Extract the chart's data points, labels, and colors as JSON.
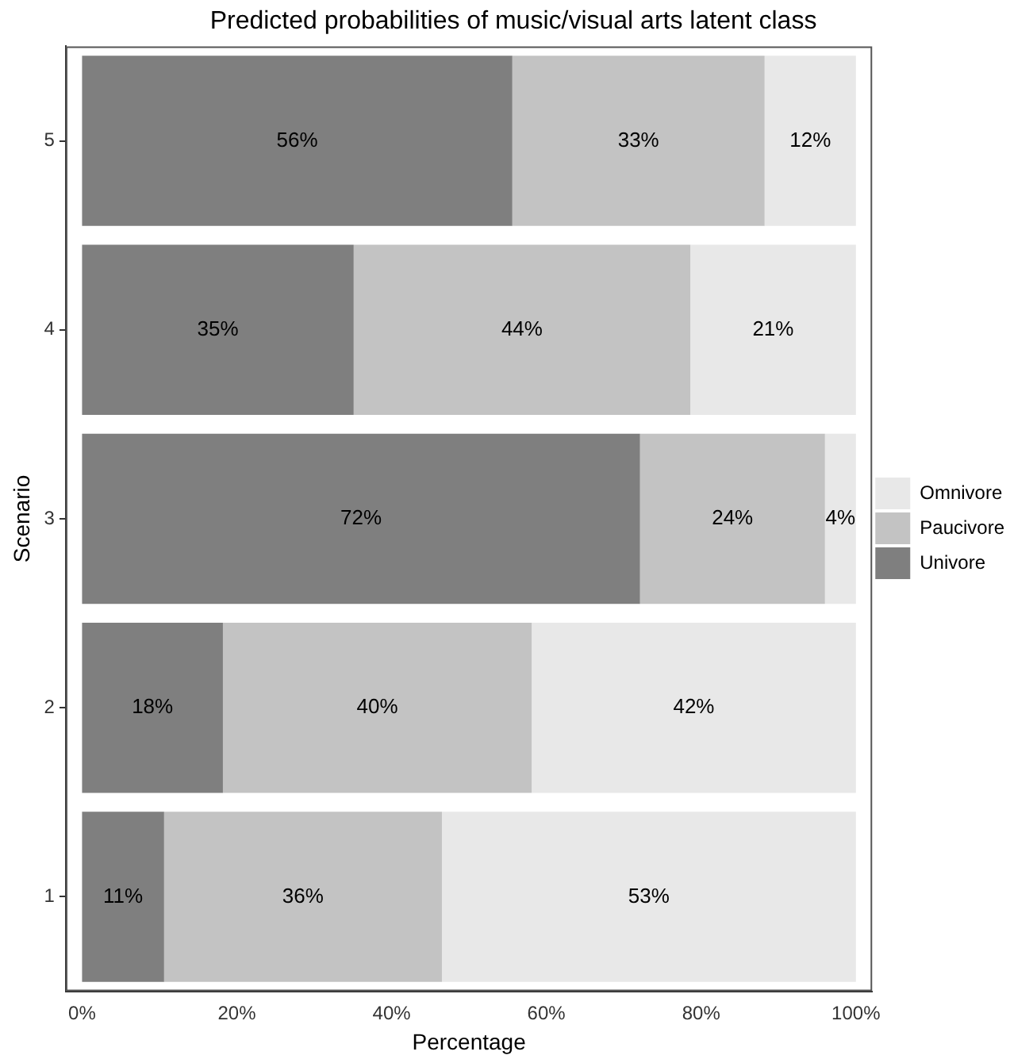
{
  "chart_data": {
    "type": "bar",
    "orientation": "horizontal",
    "stacked": true,
    "title": "Predicted probabilities of music/visual arts latent class",
    "xlabel": "Percentage",
    "ylabel": "Scenario",
    "categories": [
      "5",
      "4",
      "3",
      "2",
      "1"
    ],
    "series": [
      {
        "name": "Univore",
        "color": "#7f7f7f",
        "values": [
          55.6,
          35.1,
          72.1,
          18.2,
          10.6
        ],
        "value_labels": [
          "56%",
          "35%",
          "72%",
          "18%",
          "11%"
        ]
      },
      {
        "name": "Paucivore",
        "color": "#c3c3c3",
        "values": [
          32.6,
          43.5,
          23.9,
          39.9,
          35.9
        ],
        "value_labels": [
          "33%",
          "44%",
          "24%",
          "40%",
          "36%"
        ]
      },
      {
        "name": "Omnivore",
        "color": "#e8e8e8",
        "values": [
          11.8,
          21.4,
          4.0,
          41.9,
          53.5
        ],
        "value_labels": [
          "12%",
          "21%",
          "4%",
          "42%",
          "53%"
        ]
      }
    ],
    "xlim": [
      -2.1,
      102.1
    ],
    "xticks": [
      {
        "value": 0,
        "label": "0%"
      },
      {
        "value": 20,
        "label": "20%"
      },
      {
        "value": 40,
        "label": "40%"
      },
      {
        "value": 60,
        "label": "60%"
      },
      {
        "value": 80,
        "label": "80%"
      },
      {
        "value": 100,
        "label": "100%"
      }
    ],
    "grid": false,
    "legend": "right"
  }
}
